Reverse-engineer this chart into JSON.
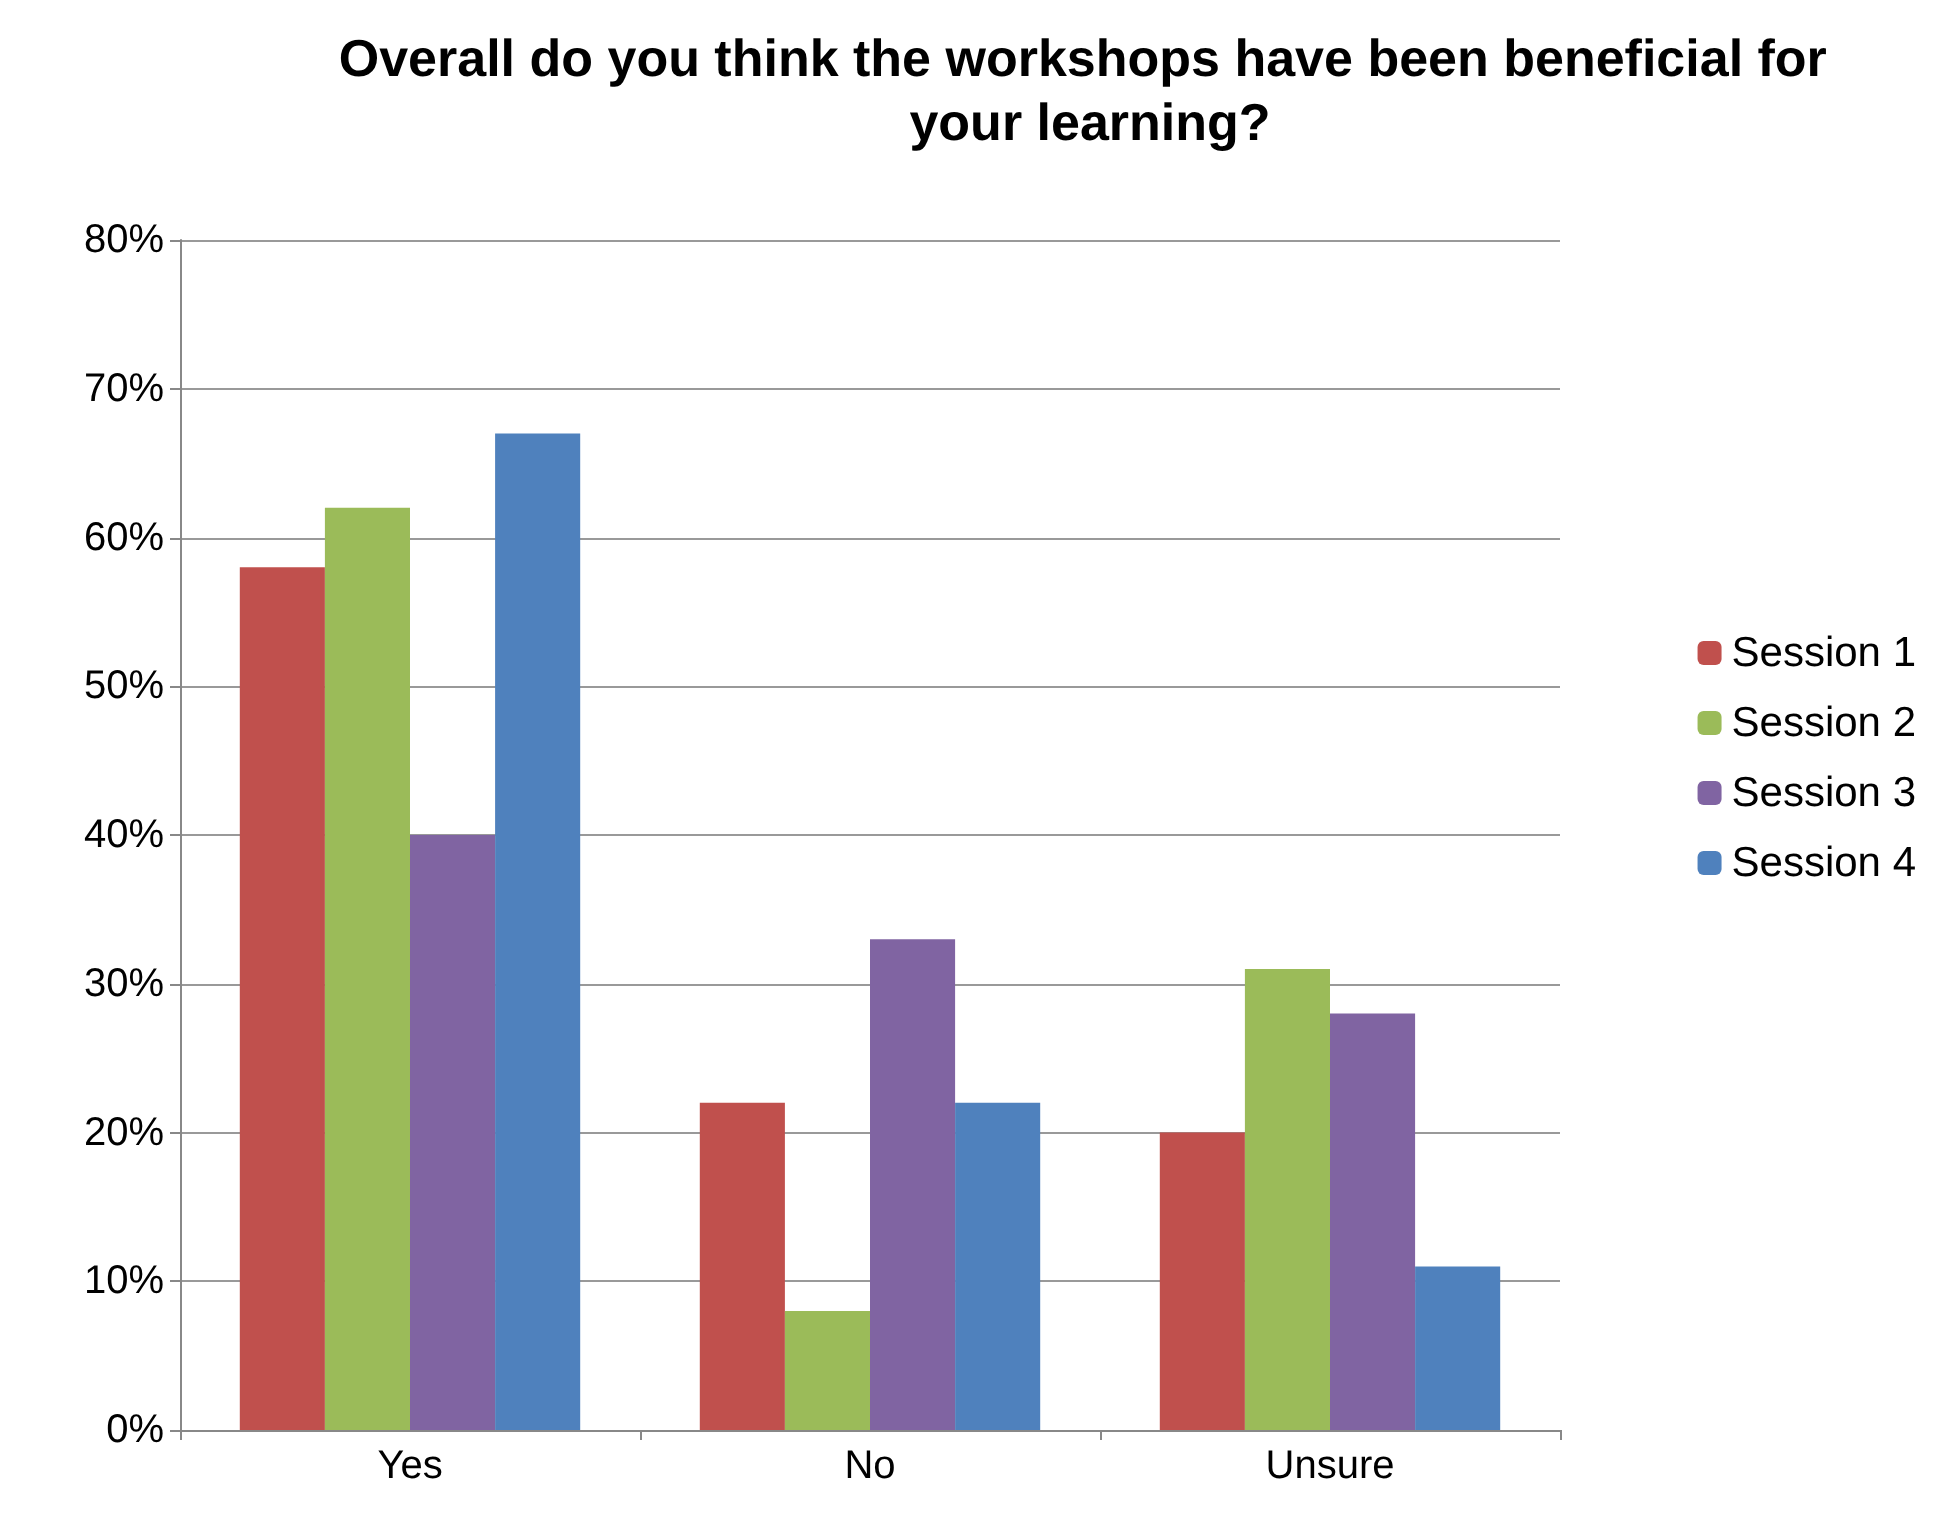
{
  "chart_data": {
    "type": "bar",
    "title": "Overall do you think the workshops have been beneficial for your learning?",
    "categories": [
      "Yes",
      "No",
      "Unsure"
    ],
    "series": [
      {
        "name": "Session 1",
        "color": "#c0504d",
        "values": [
          58,
          22,
          20
        ]
      },
      {
        "name": "Session 2",
        "color": "#9bbb59",
        "values": [
          62,
          8,
          31
        ]
      },
      {
        "name": "Session 3",
        "color": "#8064a2",
        "values": [
          40,
          33,
          28
        ]
      },
      {
        "name": "Session 4",
        "color": "#4f81bd",
        "values": [
          67,
          22,
          11
        ]
      }
    ],
    "ylim": [
      0,
      80
    ],
    "yticks": [
      {
        "value": 0,
        "label": "0%"
      },
      {
        "value": 10,
        "label": "10%"
      },
      {
        "value": 20,
        "label": "20%"
      },
      {
        "value": 30,
        "label": "30%"
      },
      {
        "value": 40,
        "label": "40%"
      },
      {
        "value": 50,
        "label": "50%"
      },
      {
        "value": 60,
        "label": "60%"
      },
      {
        "value": 70,
        "label": "70%"
      },
      {
        "value": 80,
        "label": "80%"
      }
    ],
    "grid": "y",
    "legend": "right"
  }
}
